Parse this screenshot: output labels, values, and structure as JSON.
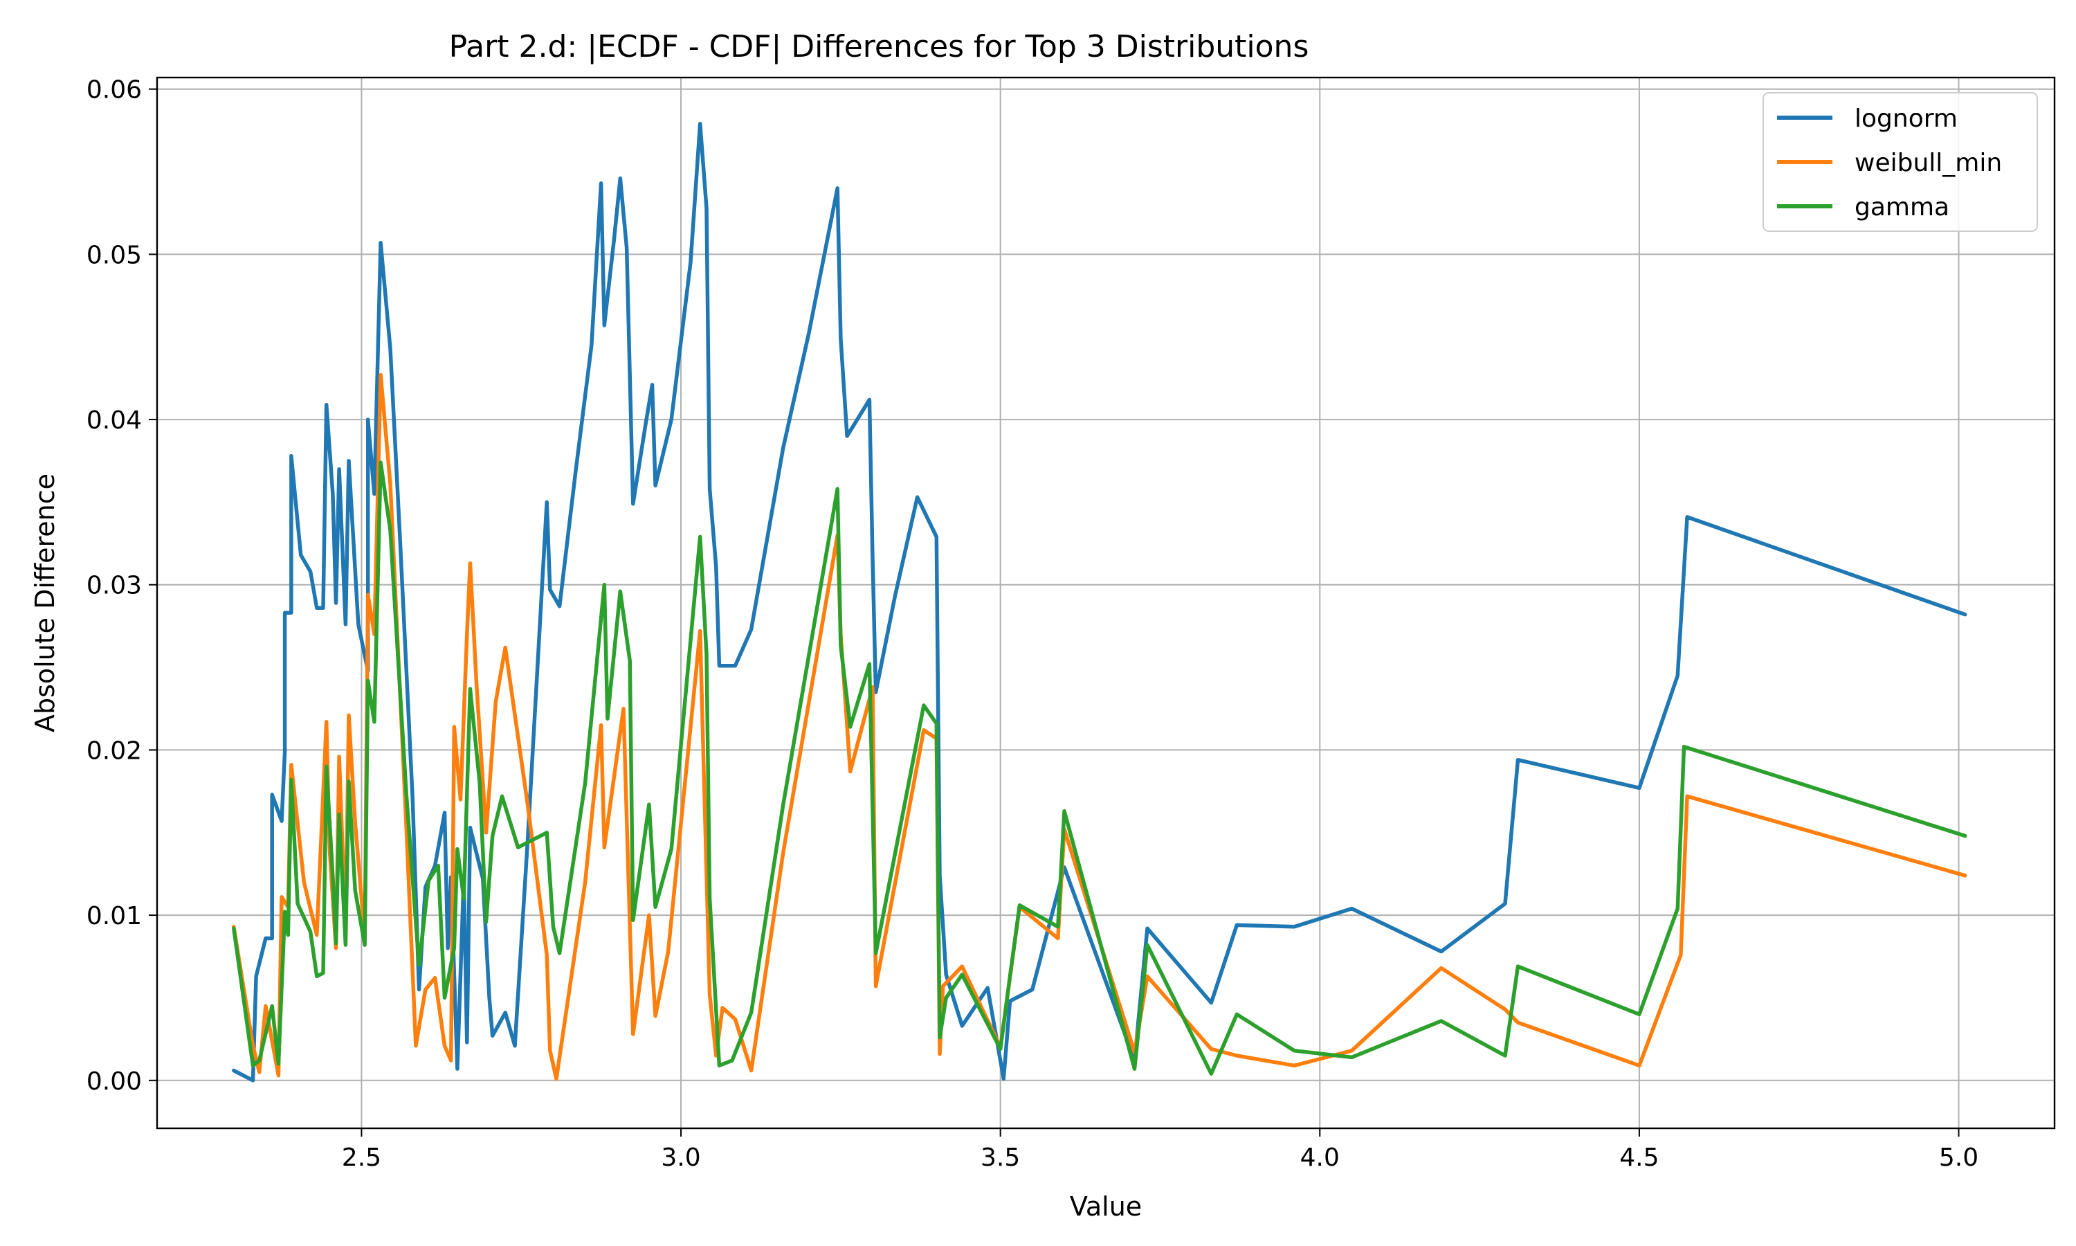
{
  "chart_data": {
    "type": "line",
    "title": "Part 2.d: |ECDF - CDF| Differences for Top 3 Distributions",
    "xlabel": "Value",
    "ylabel": "Absolute Difference",
    "xlim": [
      2.18,
      5.15
    ],
    "ylim": [
      -0.0029,
      0.0607
    ],
    "xticks": [
      2.5,
      3.0,
      3.5,
      4.0,
      4.5,
      5.0
    ],
    "xtick_labels": [
      "2.5",
      "3.0",
      "3.5",
      "4.0",
      "4.5",
      "5.0"
    ],
    "yticks": [
      0.0,
      0.01,
      0.02,
      0.03,
      0.04,
      0.05,
      0.06
    ],
    "ytick_labels": [
      "0.00",
      "0.01",
      "0.02",
      "0.03",
      "0.04",
      "0.05",
      "0.06"
    ],
    "grid": true,
    "legend_position": "top-right",
    "series": [
      {
        "name": "lognorm",
        "color": "#1f77b4",
        "points": [
          [
            2.3,
            0.0006
          ],
          [
            2.33,
            0.0
          ],
          [
            2.335,
            0.0063
          ],
          [
            2.35,
            0.0086
          ],
          [
            2.36,
            0.0086
          ],
          [
            2.36,
            0.0173
          ],
          [
            2.375,
            0.0157
          ],
          [
            2.38,
            0.0199
          ],
          [
            2.38,
            0.0283
          ],
          [
            2.39,
            0.0283
          ],
          [
            2.39,
            0.0378
          ],
          [
            2.405,
            0.0318
          ],
          [
            2.42,
            0.0308
          ],
          [
            2.43,
            0.0286
          ],
          [
            2.44,
            0.0286
          ],
          [
            2.445,
            0.0409
          ],
          [
            2.455,
            0.0355
          ],
          [
            2.46,
            0.0289
          ],
          [
            2.465,
            0.037
          ],
          [
            2.475,
            0.0276
          ],
          [
            2.48,
            0.0375
          ],
          [
            2.495,
            0.0276
          ],
          [
            2.51,
            0.0248
          ],
          [
            2.51,
            0.04
          ],
          [
            2.52,
            0.0355
          ],
          [
            2.53,
            0.0507
          ],
          [
            2.545,
            0.0443
          ],
          [
            2.56,
            0.033
          ],
          [
            2.58,
            0.017
          ],
          [
            2.59,
            0.0055
          ],
          [
            2.6,
            0.0117
          ],
          [
            2.615,
            0.013
          ],
          [
            2.63,
            0.0162
          ],
          [
            2.635,
            0.008
          ],
          [
            2.64,
            0.0123
          ],
          [
            2.65,
            0.0007
          ],
          [
            2.66,
            0.0123
          ],
          [
            2.665,
            0.0023
          ],
          [
            2.67,
            0.0153
          ],
          [
            2.69,
            0.0122
          ],
          [
            2.7,
            0.005
          ],
          [
            2.705,
            0.0027
          ],
          [
            2.725,
            0.0041
          ],
          [
            2.74,
            0.0021
          ],
          [
            2.76,
            0.0145
          ],
          [
            2.79,
            0.035
          ],
          [
            2.795,
            0.0297
          ],
          [
            2.81,
            0.0287
          ],
          [
            2.835,
            0.0368
          ],
          [
            2.86,
            0.0445
          ],
          [
            2.875,
            0.0543
          ],
          [
            2.88,
            0.0457
          ],
          [
            2.895,
            0.0508
          ],
          [
            2.905,
            0.0546
          ],
          [
            2.915,
            0.0504
          ],
          [
            2.925,
            0.0349
          ],
          [
            2.945,
            0.0398
          ],
          [
            2.955,
            0.0421
          ],
          [
            2.96,
            0.036
          ],
          [
            2.985,
            0.04
          ],
          [
            3.015,
            0.0495
          ],
          [
            3.03,
            0.0579
          ],
          [
            3.04,
            0.0528
          ],
          [
            3.045,
            0.0358
          ],
          [
            3.055,
            0.0311
          ],
          [
            3.06,
            0.0251
          ],
          [
            3.085,
            0.0251
          ],
          [
            3.11,
            0.0273
          ],
          [
            3.16,
            0.0383
          ],
          [
            3.2,
            0.0452
          ],
          [
            3.245,
            0.054
          ],
          [
            3.25,
            0.0449
          ],
          [
            3.26,
            0.039
          ],
          [
            3.295,
            0.0412
          ],
          [
            3.3,
            0.0316
          ],
          [
            3.305,
            0.0235
          ],
          [
            3.335,
            0.0293
          ],
          [
            3.37,
            0.0353
          ],
          [
            3.4,
            0.0329
          ],
          [
            3.405,
            0.0124
          ],
          [
            3.415,
            0.0064
          ],
          [
            3.44,
            0.0033
          ],
          [
            3.48,
            0.0056
          ],
          [
            3.505,
            0.0001
          ],
          [
            3.515,
            0.0048
          ],
          [
            3.55,
            0.0055
          ],
          [
            3.6,
            0.0129
          ],
          [
            3.71,
            0.0012
          ],
          [
            3.73,
            0.0092
          ],
          [
            3.83,
            0.0047
          ],
          [
            3.87,
            0.0094
          ],
          [
            3.96,
            0.0093
          ],
          [
            4.05,
            0.0104
          ],
          [
            4.19,
            0.0078
          ],
          [
            4.29,
            0.0107
          ],
          [
            4.31,
            0.0194
          ],
          [
            4.5,
            0.0177
          ],
          [
            4.56,
            0.0245
          ],
          [
            4.575,
            0.0341
          ],
          [
            5.01,
            0.0282
          ]
        ]
      },
      {
        "name": "weibull_min",
        "color": "#ff7f0e",
        "points": [
          [
            2.3,
            0.0093
          ],
          [
            2.33,
            0.0021
          ],
          [
            2.34,
            0.0005
          ],
          [
            2.35,
            0.0045
          ],
          [
            2.37,
            0.0003
          ],
          [
            2.375,
            0.0111
          ],
          [
            2.385,
            0.0105
          ],
          [
            2.39,
            0.0191
          ],
          [
            2.41,
            0.012
          ],
          [
            2.43,
            0.0088
          ],
          [
            2.445,
            0.0217
          ],
          [
            2.45,
            0.014
          ],
          [
            2.46,
            0.008
          ],
          [
            2.465,
            0.0196
          ],
          [
            2.475,
            0.0091
          ],
          [
            2.48,
            0.0221
          ],
          [
            2.49,
            0.0156
          ],
          [
            2.505,
            0.0087
          ],
          [
            2.51,
            0.0294
          ],
          [
            2.52,
            0.027
          ],
          [
            2.53,
            0.0427
          ],
          [
            2.545,
            0.0361
          ],
          [
            2.57,
            0.0154
          ],
          [
            2.585,
            0.0021
          ],
          [
            2.6,
            0.0055
          ],
          [
            2.615,
            0.0062
          ],
          [
            2.63,
            0.0021
          ],
          [
            2.64,
            0.0012
          ],
          [
            2.645,
            0.0214
          ],
          [
            2.655,
            0.017
          ],
          [
            2.665,
            0.027
          ],
          [
            2.67,
            0.0313
          ],
          [
            2.68,
            0.024
          ],
          [
            2.695,
            0.015
          ],
          [
            2.71,
            0.0229
          ],
          [
            2.725,
            0.0262
          ],
          [
            2.76,
            0.0167
          ],
          [
            2.79,
            0.0076
          ],
          [
            2.795,
            0.0018
          ],
          [
            2.805,
            0.0001
          ],
          [
            2.85,
            0.012
          ],
          [
            2.875,
            0.0215
          ],
          [
            2.88,
            0.0141
          ],
          [
            2.91,
            0.0225
          ],
          [
            2.925,
            0.0028
          ],
          [
            2.95,
            0.01
          ],
          [
            2.96,
            0.0039
          ],
          [
            2.98,
            0.0078
          ],
          [
            3.03,
            0.0272
          ],
          [
            3.045,
            0.0052
          ],
          [
            3.055,
            0.0015
          ],
          [
            3.065,
            0.0044
          ],
          [
            3.085,
            0.0037
          ],
          [
            3.11,
            0.0006
          ],
          [
            3.16,
            0.0138
          ],
          [
            3.245,
            0.033
          ],
          [
            3.25,
            0.027
          ],
          [
            3.265,
            0.0187
          ],
          [
            3.3,
            0.0238
          ],
          [
            3.305,
            0.0057
          ],
          [
            3.38,
            0.0212
          ],
          [
            3.4,
            0.0207
          ],
          [
            3.405,
            0.0016
          ],
          [
            3.41,
            0.0057
          ],
          [
            3.44,
            0.0069
          ],
          [
            3.5,
            0.002
          ],
          [
            3.53,
            0.0105
          ],
          [
            3.59,
            0.0086
          ],
          [
            3.6,
            0.0152
          ],
          [
            3.71,
            0.0017
          ],
          [
            3.73,
            0.0063
          ],
          [
            3.83,
            0.0019
          ],
          [
            3.87,
            0.0015
          ],
          [
            3.96,
            0.0009
          ],
          [
            4.05,
            0.0018
          ],
          [
            4.19,
            0.0068
          ],
          [
            4.29,
            0.0043
          ],
          [
            4.31,
            0.0035
          ],
          [
            4.5,
            0.0009
          ],
          [
            4.565,
            0.0076
          ],
          [
            4.575,
            0.0172
          ],
          [
            5.01,
            0.0124
          ]
        ]
      },
      {
        "name": "gamma",
        "color": "#2ca02c",
        "points": [
          [
            2.3,
            0.0092
          ],
          [
            2.33,
            0.0009
          ],
          [
            2.34,
            0.0012
          ],
          [
            2.36,
            0.0045
          ],
          [
            2.37,
            0.001
          ],
          [
            2.38,
            0.0102
          ],
          [
            2.385,
            0.0088
          ],
          [
            2.39,
            0.0182
          ],
          [
            2.4,
            0.0107
          ],
          [
            2.42,
            0.009
          ],
          [
            2.43,
            0.0063
          ],
          [
            2.44,
            0.0065
          ],
          [
            2.445,
            0.019
          ],
          [
            2.455,
            0.0123
          ],
          [
            2.46,
            0.0083
          ],
          [
            2.465,
            0.0161
          ],
          [
            2.475,
            0.0082
          ],
          [
            2.48,
            0.0181
          ],
          [
            2.49,
            0.0115
          ],
          [
            2.505,
            0.0082
          ],
          [
            2.51,
            0.0242
          ],
          [
            2.52,
            0.0217
          ],
          [
            2.53,
            0.0374
          ],
          [
            2.545,
            0.0333
          ],
          [
            2.57,
            0.0174
          ],
          [
            2.59,
            0.007
          ],
          [
            2.605,
            0.0121
          ],
          [
            2.62,
            0.013
          ],
          [
            2.63,
            0.005
          ],
          [
            2.645,
            0.008
          ],
          [
            2.65,
            0.014
          ],
          [
            2.66,
            0.011
          ],
          [
            2.67,
            0.0237
          ],
          [
            2.685,
            0.018
          ],
          [
            2.695,
            0.0096
          ],
          [
            2.705,
            0.0148
          ],
          [
            2.72,
            0.0172
          ],
          [
            2.745,
            0.0141
          ],
          [
            2.79,
            0.015
          ],
          [
            2.8,
            0.0093
          ],
          [
            2.81,
            0.0077
          ],
          [
            2.85,
            0.018
          ],
          [
            2.88,
            0.03
          ],
          [
            2.885,
            0.0219
          ],
          [
            2.905,
            0.0296
          ],
          [
            2.92,
            0.0254
          ],
          [
            2.925,
            0.0097
          ],
          [
            2.95,
            0.0167
          ],
          [
            2.96,
            0.0105
          ],
          [
            2.985,
            0.014
          ],
          [
            3.03,
            0.0329
          ],
          [
            3.04,
            0.0258
          ],
          [
            3.045,
            0.011
          ],
          [
            3.06,
            0.0009
          ],
          [
            3.08,
            0.0012
          ],
          [
            3.11,
            0.0041
          ],
          [
            3.16,
            0.0167
          ],
          [
            3.245,
            0.0358
          ],
          [
            3.25,
            0.0263
          ],
          [
            3.265,
            0.0214
          ],
          [
            3.295,
            0.0252
          ],
          [
            3.305,
            0.0077
          ],
          [
            3.38,
            0.0227
          ],
          [
            3.4,
            0.0216
          ],
          [
            3.405,
            0.0026
          ],
          [
            3.415,
            0.005
          ],
          [
            3.44,
            0.0064
          ],
          [
            3.5,
            0.0019
          ],
          [
            3.515,
            0.0063
          ],
          [
            3.53,
            0.0106
          ],
          [
            3.59,
            0.0093
          ],
          [
            3.6,
            0.0163
          ],
          [
            3.71,
            0.0007
          ],
          [
            3.73,
            0.0082
          ],
          [
            3.83,
            0.0004
          ],
          [
            3.87,
            0.004
          ],
          [
            3.96,
            0.0018
          ],
          [
            4.05,
            0.0014
          ],
          [
            4.19,
            0.0036
          ],
          [
            4.29,
            0.0015
          ],
          [
            4.31,
            0.0069
          ],
          [
            4.5,
            0.004
          ],
          [
            4.56,
            0.0104
          ],
          [
            4.57,
            0.0202
          ],
          [
            5.01,
            0.0148
          ]
        ]
      }
    ]
  }
}
